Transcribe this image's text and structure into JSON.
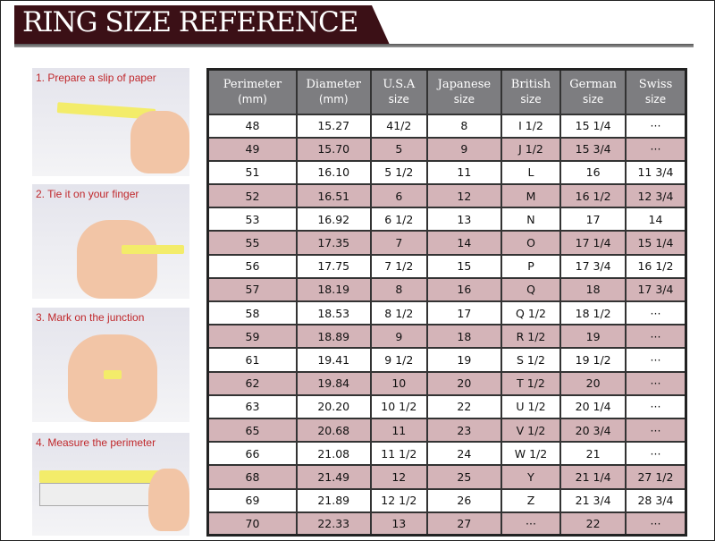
{
  "title": "RING SIZE REFERENCE",
  "steps": [
    "1. Prepare a slip of paper",
    "2. Tie it on your finger",
    "3. Mark on the junction",
    "4. Measure the perimeter"
  ],
  "colors": {
    "banner": "#3b1016",
    "header": "#7d7d80",
    "alt_row": "#d4b4b8",
    "step_label": "#c0282c"
  },
  "table": {
    "headers": [
      [
        "Perimeter",
        "(mm)"
      ],
      [
        "Diameter",
        "(mm)"
      ],
      [
        "U.S.A",
        "size"
      ],
      [
        "Japanese",
        "size"
      ],
      [
        "British",
        "size"
      ],
      [
        "German",
        "size"
      ],
      [
        "Swiss",
        "size"
      ]
    ],
    "rows": [
      [
        "48",
        "15.27",
        "41/2",
        "8",
        "I 1/2",
        "15 1/4",
        "···"
      ],
      [
        "49",
        "15.70",
        "5",
        "9",
        "J 1/2",
        "15 3/4",
        "···"
      ],
      [
        "51",
        "16.10",
        "5 1/2",
        "11",
        "L",
        "16",
        "11 3/4"
      ],
      [
        "52",
        "16.51",
        "6",
        "12",
        "M",
        "16 1/2",
        "12 3/4"
      ],
      [
        "53",
        "16.92",
        "6 1/2",
        "13",
        "N",
        "17",
        "14"
      ],
      [
        "55",
        "17.35",
        "7",
        "14",
        "O",
        "17 1/4",
        "15 1/4"
      ],
      [
        "56",
        "17.75",
        "7 1/2",
        "15",
        "P",
        "17 3/4",
        "16 1/2"
      ],
      [
        "57",
        "18.19",
        "8",
        "16",
        "Q",
        "18",
        "17 3/4"
      ],
      [
        "58",
        "18.53",
        "8 1/2",
        "17",
        "Q  1/2",
        "18 1/2",
        "···"
      ],
      [
        "59",
        "18.89",
        "9",
        "18",
        "R 1/2",
        "19",
        "···"
      ],
      [
        "61",
        "19.41",
        "9 1/2",
        "19",
        "S 1/2",
        "19 1/2",
        "···"
      ],
      [
        "62",
        "19.84",
        "10",
        "20",
        "T 1/2",
        "20",
        "···"
      ],
      [
        "63",
        "20.20",
        "10 1/2",
        "22",
        "U 1/2",
        "20 1/4",
        "···"
      ],
      [
        "65",
        "20.68",
        "11",
        "23",
        "V 1/2",
        "20 3/4",
        "···"
      ],
      [
        "66",
        "21.08",
        "11 1/2",
        "24",
        "W 1/2",
        "21",
        "···"
      ],
      [
        "68",
        "21.49",
        "12",
        "25",
        "Y",
        "21 1/4",
        "27 1/2"
      ],
      [
        "69",
        "21.89",
        "12 1/2",
        "26",
        "Z",
        "21 3/4",
        "28 3/4"
      ],
      [
        "70",
        "22.33",
        "13",
        "27",
        "···",
        "22",
        "···"
      ]
    ]
  }
}
